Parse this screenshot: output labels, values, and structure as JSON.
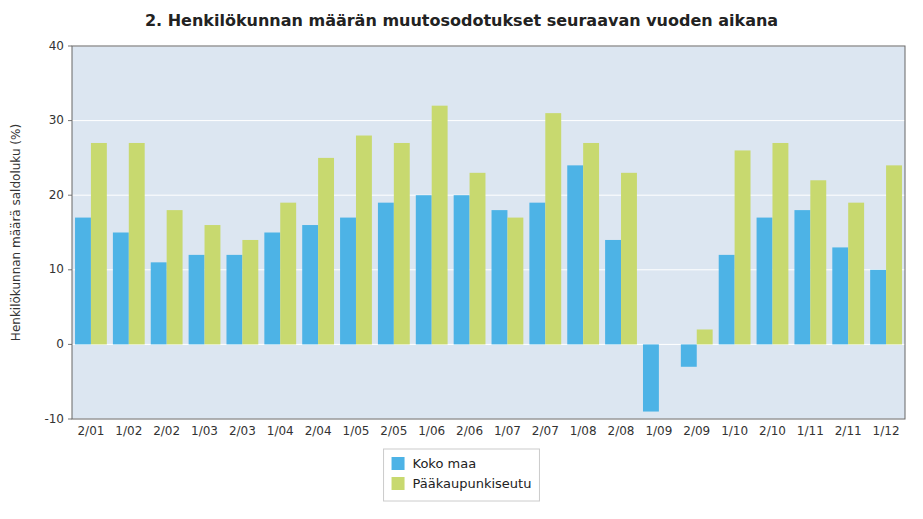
{
  "chart_data": {
    "type": "bar",
    "title": "2. Henkilökunnan määrän muutosodotukset seuraavan vuoden aikana",
    "ylabel": "Henkilökunnan määrä saldoluku (%)",
    "categories": [
      "2/01",
      "1/02",
      "2/02",
      "1/03",
      "2/03",
      "1/04",
      "2/04",
      "1/05",
      "2/05",
      "1/06",
      "2/06",
      "1/07",
      "2/07",
      "1/08",
      "2/08",
      "1/09",
      "2/09",
      "1/10",
      "2/10",
      "1/11",
      "2/11",
      "1/12"
    ],
    "series": [
      {
        "name": "Koko maa",
        "color": "#4db3e6",
        "values": [
          17,
          15,
          11,
          12,
          12,
          15,
          16,
          17,
          19,
          20,
          20,
          18,
          19,
          24,
          14,
          -9,
          -3,
          12,
          17,
          18,
          13,
          10
        ]
      },
      {
        "name": "Pääkaupunkiseutu",
        "color": "#c8d96f",
        "values": [
          27,
          27,
          18,
          16,
          14,
          19,
          25,
          28,
          27,
          32,
          23,
          17,
          31,
          27,
          23,
          0,
          2,
          26,
          27,
          22,
          19,
          24
        ]
      }
    ],
    "ylim": [
      -10,
      40
    ],
    "yticks": [
      -10,
      0,
      10,
      20,
      30,
      40
    ],
    "grid": true,
    "legend": "bottom"
  }
}
